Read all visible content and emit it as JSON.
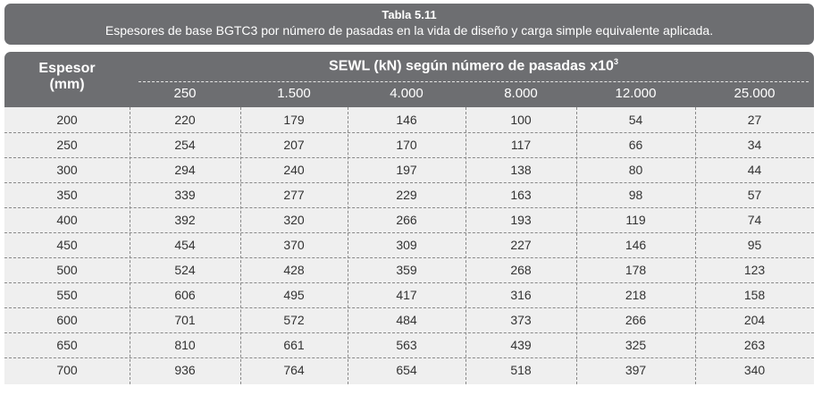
{
  "caption": {
    "title": "Tabla 5.11",
    "subtitle": "Espesores de base BGTC3 por número de pasadas en la vida de diseño y carga simple equivalente aplicada."
  },
  "header": {
    "thickness_label_1": "Espesor",
    "thickness_label_2": "(mm)",
    "group_label": "SEWL (kN) según número de pasadas x10",
    "group_label_exp": "3",
    "passes": [
      "250",
      "1.500",
      "4.000",
      "8.000",
      "12.000",
      "25.000"
    ]
  },
  "rows": [
    {
      "espesor": "200",
      "values": [
        "220",
        "179",
        "146",
        "100",
        "54",
        "27"
      ]
    },
    {
      "espesor": "250",
      "values": [
        "254",
        "207",
        "170",
        "117",
        "66",
        "34"
      ]
    },
    {
      "espesor": "300",
      "values": [
        "294",
        "240",
        "197",
        "138",
        "80",
        "44"
      ]
    },
    {
      "espesor": "350",
      "values": [
        "339",
        "277",
        "229",
        "163",
        "98",
        "57"
      ]
    },
    {
      "espesor": "400",
      "values": [
        "392",
        "320",
        "266",
        "193",
        "119",
        "74"
      ]
    },
    {
      "espesor": "450",
      "values": [
        "454",
        "370",
        "309",
        "227",
        "146",
        "95"
      ]
    },
    {
      "espesor": "500",
      "values": [
        "524",
        "428",
        "359",
        "268",
        "178",
        "123"
      ]
    },
    {
      "espesor": "550",
      "values": [
        "606",
        "495",
        "417",
        "316",
        "218",
        "158"
      ]
    },
    {
      "espesor": "600",
      "values": [
        "701",
        "572",
        "484",
        "373",
        "266",
        "204"
      ]
    },
    {
      "espesor": "650",
      "values": [
        "810",
        "661",
        "563",
        "439",
        "325",
        "263"
      ]
    },
    {
      "espesor": "700",
      "values": [
        "936",
        "764",
        "654",
        "518",
        "397",
        "340"
      ]
    }
  ]
}
